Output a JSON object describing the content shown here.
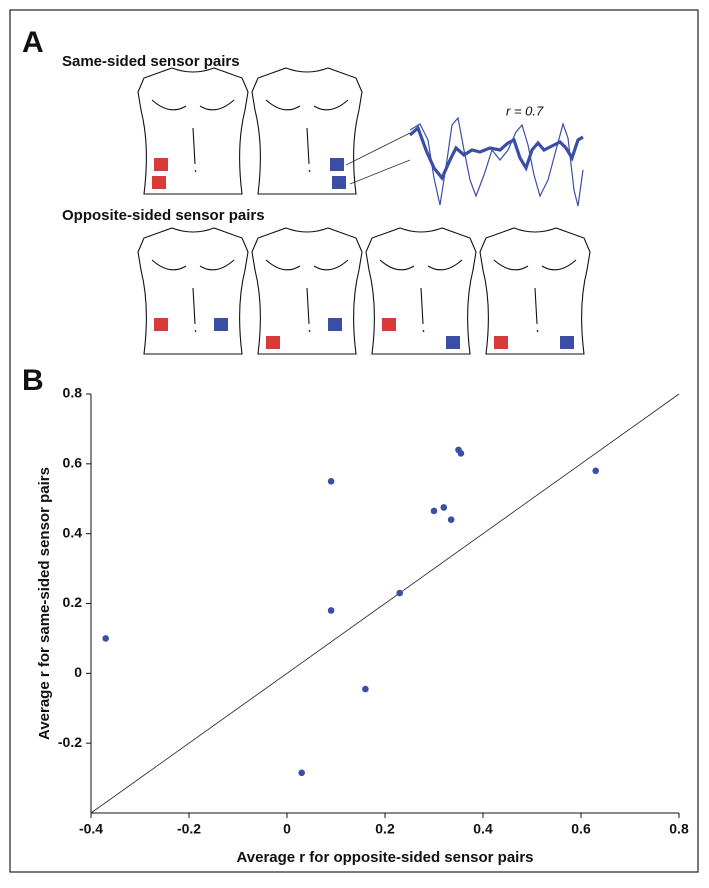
{
  "panel_a": {
    "label": "A",
    "same_title": "Same-sided sensor pairs",
    "opposite_title": "Opposite-sided sensor pairs",
    "annotation": "r = 0.7"
  },
  "chart_data": {
    "type": "scatter",
    "panel_label": "B",
    "x_label": "Average r for opposite-sided sensor pairs",
    "y_label": "Average r for same-sided sensor pairs",
    "color": "#3b4ea6",
    "x": [
      -0.37,
      0.09,
      0.09,
      0.03,
      0.16,
      0.23,
      0.3,
      0.32,
      0.335,
      0.35,
      0.355,
      0.63
    ],
    "y": [
      0.1,
      0.55,
      0.18,
      -0.285,
      -0.045,
      0.23,
      0.465,
      0.475,
      0.44,
      0.64,
      0.63,
      0.58
    ],
    "xlim": [
      -0.4,
      0.8
    ],
    "ylim": [
      -0.4,
      0.8
    ],
    "xticks": [
      -0.4,
      -0.2,
      0,
      0.2,
      0.4,
      0.6,
      0.8
    ],
    "yticks": [
      -0.2,
      0,
      0.2,
      0.4,
      0.6,
      0.8
    ],
    "identity_line": true
  }
}
